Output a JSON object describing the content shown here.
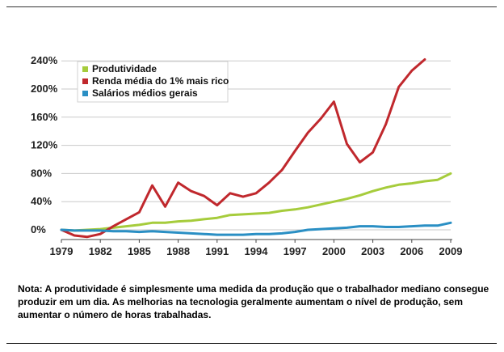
{
  "chart_data": {
    "type": "line",
    "title": "",
    "xlabel": "",
    "ylabel": "",
    "x_ticks": [
      "1979",
      "1982",
      "1985",
      "1988",
      "1991",
      "1994",
      "1997",
      "2000",
      "2003",
      "2006",
      "2009"
    ],
    "y_ticks": [
      "240%",
      "200%",
      "160%",
      "120%",
      "80%",
      "40%",
      "0%"
    ],
    "xlim": [
      1979,
      2009
    ],
    "ylim": [
      -20,
      250
    ],
    "grid": true,
    "legend_position": "top-left",
    "series": [
      {
        "name": "Produtividade",
        "color": "#a6cc3c",
        "x": [
          1979,
          1980,
          1981,
          1982,
          1983,
          1984,
          1985,
          1986,
          1987,
          1988,
          1989,
          1990,
          1991,
          1992,
          1993,
          1994,
          1995,
          1996,
          1997,
          1998,
          1999,
          2000,
          2001,
          2002,
          2003,
          2004,
          2005,
          2006,
          2007,
          2008,
          2009
        ],
        "values": [
          0,
          -1,
          0,
          1,
          3,
          5,
          7,
          10,
          10,
          12,
          13,
          15,
          17,
          21,
          22,
          23,
          24,
          27,
          29,
          32,
          36,
          40,
          44,
          49,
          55,
          60,
          64,
          66,
          69,
          71,
          80
        ]
      },
      {
        "name": "Renda média do 1% mais rico",
        "color": "#c0282d",
        "x": [
          1979,
          1980,
          1981,
          1982,
          1983,
          1984,
          1985,
          1986,
          1987,
          1988,
          1989,
          1990,
          1991,
          1992,
          1993,
          1994,
          1995,
          1996,
          1997,
          1998,
          1999,
          2000,
          2001,
          2002,
          2003,
          2004,
          2005,
          2006,
          2007
        ],
        "values": [
          0,
          -8,
          -10,
          -6,
          5,
          15,
          25,
          63,
          33,
          67,
          55,
          48,
          35,
          52,
          47,
          52,
          67,
          85,
          112,
          138,
          158,
          182,
          122,
          96,
          110,
          150,
          203,
          226,
          242
        ]
      },
      {
        "name": "Salários médios gerais",
        "color": "#2a8fc4",
        "x": [
          1979,
          1980,
          1981,
          1982,
          1983,
          1984,
          1985,
          1986,
          1987,
          1988,
          1989,
          1990,
          1991,
          1992,
          1993,
          1994,
          1995,
          1996,
          1997,
          1998,
          1999,
          2000,
          2001,
          2002,
          2003,
          2004,
          2005,
          2006,
          2007,
          2008,
          2009
        ],
        "values": [
          0,
          -1,
          -1,
          -1,
          -2,
          -2,
          -3,
          -2,
          -3,
          -4,
          -5,
          -6,
          -7,
          -7,
          -7,
          -6,
          -6,
          -5,
          -3,
          0,
          1,
          2,
          3,
          5,
          5,
          4,
          4,
          5,
          6,
          6,
          10
        ]
      }
    ]
  },
  "note": {
    "line1": "Nota: A produtividade é simplesmente uma medida da produção que o trabalhador mediano consegue",
    "line2": "produzir em um dia. As melhorias na tecnologia geralmente aumentam o nível de produção, sem",
    "line3": "aumentar o número de horas trabalhadas."
  }
}
